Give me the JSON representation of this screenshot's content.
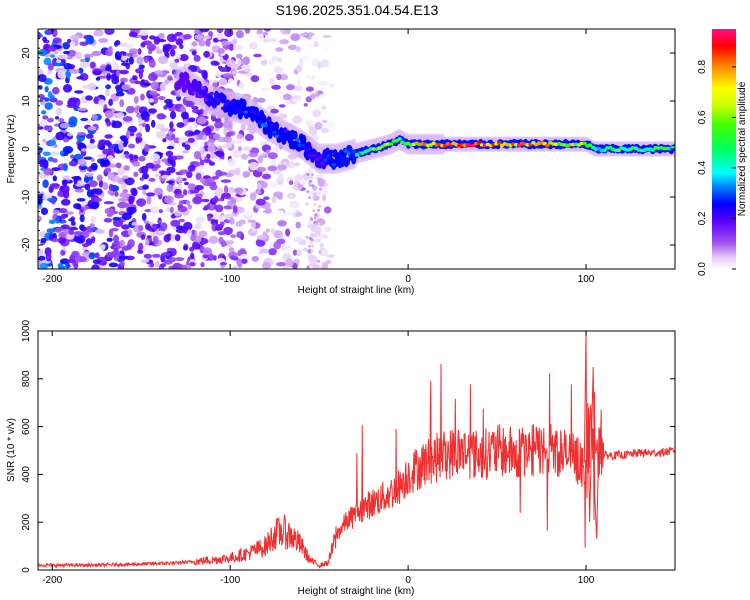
{
  "title": "S196.2025.351.04.54.E13",
  "chart_data": [
    {
      "type": "heatmap",
      "xlabel": "Height of straight line (km)",
      "ylabel": "Frequency (Hz)",
      "xlim": [
        -208,
        150
      ],
      "ylim": [
        -25,
        25
      ],
      "x_ticks": [
        -200,
        -100,
        0,
        100
      ],
      "x_tick_labels": [
        "-200",
        "-100",
        "0",
        "100"
      ],
      "y_ticks": [
        -20,
        -10,
        0,
        10,
        20
      ],
      "y_tick_labels": [
        "-20",
        "-10",
        "0",
        "10",
        "20"
      ],
      "colorbar": {
        "label": "Normalized spectral amplitude",
        "range": [
          0,
          0.95
        ],
        "ticks": [
          0.0,
          0.2,
          0.4,
          0.6,
          0.8
        ],
        "tick_labels": [
          "0.0",
          "0.2",
          "0.4",
          "0.6",
          "0.8"
        ]
      },
      "ridge": [
        {
          "x": -125,
          "f": 14,
          "amp": 0.15
        },
        {
          "x": -110,
          "f": 10,
          "amp": 0.25
        },
        {
          "x": -100,
          "f": 9,
          "amp": 0.3
        },
        {
          "x": -90,
          "f": 8,
          "amp": 0.3
        },
        {
          "x": -80,
          "f": 5,
          "amp": 0.3
        },
        {
          "x": -70,
          "f": 3,
          "amp": 0.3
        },
        {
          "x": -60,
          "f": 1,
          "amp": 0.3
        },
        {
          "x": -50,
          "f": -2,
          "amp": 0.25
        },
        {
          "x": -40,
          "f": -2,
          "amp": 0.3
        },
        {
          "x": -30,
          "f": -1,
          "amp": 0.4
        },
        {
          "x": -20,
          "f": 0,
          "amp": 0.6
        },
        {
          "x": -10,
          "f": 1,
          "amp": 0.7
        },
        {
          "x": -5,
          "f": 2,
          "amp": 0.6
        },
        {
          "x": 0,
          "f": 1,
          "amp": 0.7
        },
        {
          "x": 10,
          "f": 1,
          "amp": 0.8
        },
        {
          "x": 20,
          "f": 1,
          "amp": 0.9
        },
        {
          "x": 40,
          "f": 1,
          "amp": 0.9
        },
        {
          "x": 60,
          "f": 1,
          "amp": 0.9
        },
        {
          "x": 80,
          "f": 1,
          "amp": 0.8
        },
        {
          "x": 95,
          "f": 1,
          "amp": 0.7
        },
        {
          "x": 100,
          "f": 1,
          "amp": 0.6
        },
        {
          "x": 105,
          "f": 0,
          "amp": 0.5
        },
        {
          "x": 110,
          "f": 0,
          "amp": 0.6
        },
        {
          "x": 130,
          "f": 0,
          "amp": 0.55
        },
        {
          "x": 150,
          "f": 0,
          "amp": 0.6
        }
      ]
    },
    {
      "type": "line",
      "xlabel": "Height of straight line (km)",
      "ylabel": "SNR (10 * v/v)",
      "xlim": [
        -208,
        150
      ],
      "ylim": [
        0,
        1000
      ],
      "x_ticks": [
        -200,
        -100,
        0,
        100
      ],
      "x_tick_labels": [
        "-200",
        "-100",
        "0",
        "100"
      ],
      "y_ticks": [
        0,
        200,
        400,
        600,
        800,
        1000
      ],
      "y_tick_labels": [
        "0",
        "200",
        "400",
        "600",
        "800",
        "1000"
      ],
      "color": "#f03030",
      "series": [
        {
          "name": "SNR",
          "x": [
            -208,
            -180,
            -150,
            -130,
            -120,
            -100,
            -90,
            -80,
            -75,
            -70,
            -65,
            -60,
            -55,
            -50,
            -45,
            -40,
            -35,
            -30,
            -25,
            -20,
            -15,
            -10,
            -5,
            0,
            10,
            20,
            30,
            40,
            50,
            60,
            70,
            80,
            90,
            95,
            100,
            102,
            104,
            106,
            108,
            110,
            120,
            130,
            140,
            150
          ],
          "y": [
            20,
            20,
            25,
            30,
            35,
            50,
            70,
            100,
            150,
            160,
            140,
            100,
            40,
            20,
            30,
            150,
            200,
            230,
            260,
            280,
            300,
            320,
            350,
            400,
            450,
            480,
            500,
            480,
            500,
            490,
            500,
            510,
            480,
            460,
            430,
            550,
            600,
            480,
            500,
            480,
            480,
            490,
            490,
            500
          ]
        }
      ]
    }
  ]
}
